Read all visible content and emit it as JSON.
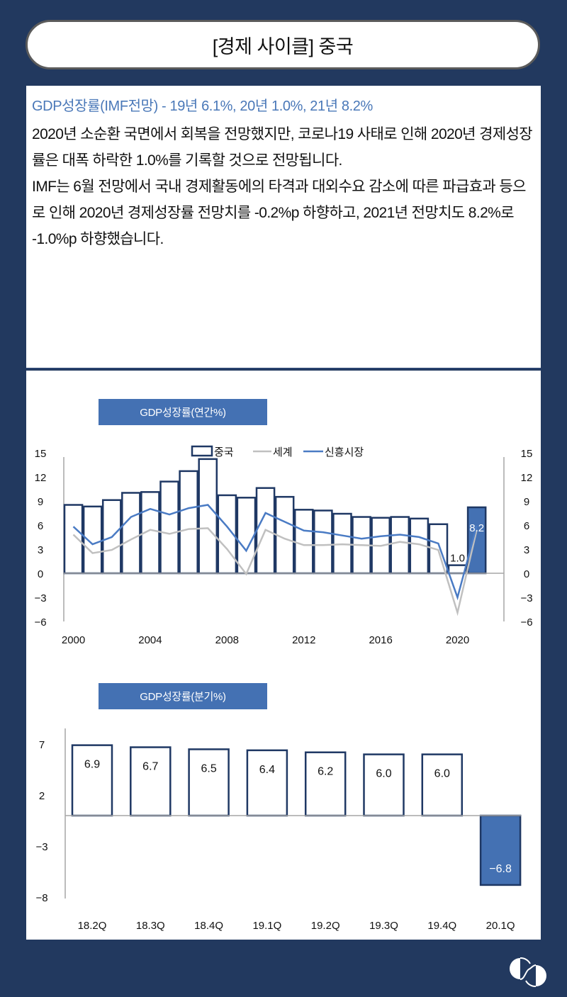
{
  "header": {
    "title": "[경제 사이클] 중국"
  },
  "summary": {
    "headline": "GDP성장률(IMF전망) - 19년 6.1%, 20년 1.0%, 21년 8.2%",
    "paragraphs": [
      "2020년 소순환 국면에서 회복을 전망했지만, 코로나19 사태로 인해 2020년 경제성장률은 대폭 하락한 1.0%를 기록할 것으로 전망됩니다.",
      "IMF는 6월 전망에서 국내 경제활동에의 타격과 대외수요 감소에 따른 파급효과 등으로 인해 2020년 경제성장률 전망치를 -0.2%p 하향하고, 2021년 전망치도 8.2%로 -1.0%p 하향했습니다."
    ]
  },
  "colors": {
    "background": "#22395f",
    "bar_outline": "#1f3864",
    "highlight_bar": "#4471b3",
    "world_line": "#c0c0c0",
    "emerging_line": "#4a7bc4",
    "headline": "#4a78b8"
  },
  "chart_data": [
    {
      "type": "bar",
      "title": "GDP성장률(연간%)",
      "xlabel": "",
      "ylabel": "",
      "ylim": [
        -6,
        15
      ],
      "yticks": [
        15,
        12,
        9,
        6,
        3,
        0,
        -3,
        -6
      ],
      "xtick_labels": [
        "2000",
        "2004",
        "2008",
        "2012",
        "2016",
        "2020"
      ],
      "legend": [
        "중국",
        "세계",
        "신흥시장"
      ],
      "legend_position": "top",
      "categories": [
        "2000",
        "2001",
        "2002",
        "2003",
        "2004",
        "2005",
        "2006",
        "2007",
        "2008",
        "2009",
        "2010",
        "2011",
        "2012",
        "2013",
        "2014",
        "2015",
        "2016",
        "2017",
        "2018",
        "2019",
        "2020",
        "2021"
      ],
      "series": [
        {
          "name": "중국",
          "type": "bar",
          "values": [
            8.5,
            8.3,
            9.1,
            10.0,
            10.1,
            11.4,
            12.7,
            14.2,
            9.7,
            9.4,
            10.6,
            9.5,
            7.9,
            7.8,
            7.4,
            7.0,
            6.9,
            7.0,
            6.8,
            6.1,
            1.0,
            8.2
          ]
        },
        {
          "name": "세계",
          "type": "line",
          "values": [
            4.8,
            2.5,
            2.9,
            4.2,
            5.4,
            4.9,
            5.5,
            5.6,
            3.0,
            -0.1,
            5.4,
            4.3,
            3.5,
            3.5,
            3.6,
            3.5,
            3.4,
            3.9,
            3.6,
            2.9,
            -4.9,
            5.4
          ]
        },
        {
          "name": "신흥시장",
          "type": "line",
          "values": [
            5.8,
            3.6,
            4.5,
            7.0,
            8.0,
            7.3,
            8.1,
            8.5,
            5.8,
            2.8,
            7.5,
            6.4,
            5.3,
            5.1,
            4.7,
            4.3,
            4.6,
            4.8,
            4.5,
            3.7,
            -3.0,
            5.9
          ]
        }
      ],
      "data_labels": {
        "2020": "1.0",
        "2021": "8.2"
      },
      "highlighted_categories": [
        "2021"
      ]
    },
    {
      "type": "bar",
      "title": "GDP성장률(분기%)",
      "xlabel": "",
      "ylabel": "",
      "ylim": [
        -8,
        7
      ],
      "yticks": [
        7,
        2,
        -3,
        -8
      ],
      "categories": [
        "18.2Q",
        "18.3Q",
        "18.4Q",
        "19.1Q",
        "19.2Q",
        "19.3Q",
        "19.4Q",
        "20.1Q"
      ],
      "values": [
        6.9,
        6.7,
        6.5,
        6.4,
        6.2,
        6.0,
        6.0,
        -6.8
      ],
      "data_labels": [
        "6.9",
        "6.7",
        "6.5",
        "6.4",
        "6.2",
        "6.0",
        "6.0",
        "-6.8"
      ],
      "highlighted_categories": [
        "20.1Q"
      ]
    }
  ],
  "charts": {
    "annual": {
      "tag": "GDP성장률(연간%)",
      "legend": {
        "china": "중국",
        "world": "세계",
        "emerging": "신흥시장"
      },
      "yticks": [
        "15",
        "12",
        "9",
        "6",
        "3",
        "0",
        "-3",
        "-6"
      ],
      "xticks": [
        "2000",
        "2004",
        "2008",
        "2012",
        "2016",
        "2020"
      ],
      "labels": {
        "v2020": "1.0",
        "v2021": "8.2"
      }
    },
    "quarterly": {
      "tag": "GDP성장률(분기%)",
      "yticks": [
        "7",
        "2",
        "-3",
        "-8"
      ],
      "xticks": [
        "18.2Q",
        "18.3Q",
        "18.4Q",
        "19.1Q",
        "19.2Q",
        "19.3Q",
        "19.4Q",
        "20.1Q"
      ],
      "labels": [
        "6.9",
        "6.7",
        "6.5",
        "6.4",
        "6.2",
        "6.0",
        "6.0",
        "-6.8"
      ]
    }
  },
  "logo": {
    "icon": "brand-logo-icon"
  }
}
